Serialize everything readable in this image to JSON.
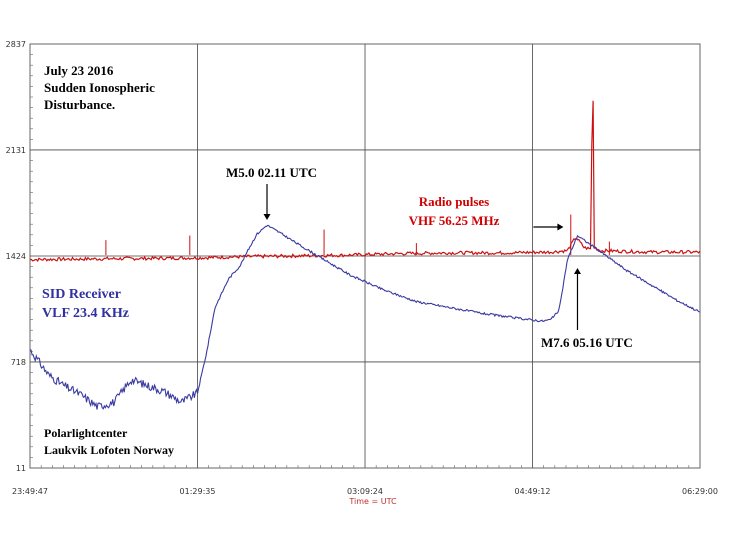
{
  "chart_data": {
    "type": "line",
    "title": "",
    "xlabel": "Time = UTC",
    "ylabel": "",
    "y_ticks": [
      "2837",
      "2131",
      "1424",
      "718",
      "11"
    ],
    "ylim": [
      11,
      2837
    ],
    "x_ticks": [
      "23:49:47",
      "01:29:35",
      "03:09:24",
      "04:49:12",
      "06:29:00"
    ],
    "xlim": [
      "23:49:47",
      "06:29:00"
    ],
    "grid": true,
    "colors": {
      "sid": "#3a3aa0",
      "radio": "#cc1111",
      "grid": "#444444",
      "axis": "#666666"
    },
    "series": [
      {
        "name": "SID Receiver",
        "x": [
          "23:49:47",
          "00:01",
          "00:10",
          "00:20",
          "00:30",
          "00:40",
          "00:50",
          "01:00",
          "01:10",
          "01:20",
          "01:29:35",
          "01:35",
          "01:40",
          "01:48",
          "01:55",
          "02:00",
          "02:05",
          "02:11",
          "02:20",
          "02:30",
          "02:45",
          "03:00",
          "03:20",
          "03:40",
          "04:00",
          "04:20",
          "04:40",
          "04:55",
          "05:00",
          "05:05",
          "05:10",
          "05:16",
          "05:25",
          "05:35",
          "05:45",
          "06:00",
          "06:15",
          "06:29:00"
        ],
        "values": [
          800,
          630,
          560,
          500,
          420,
          450,
          600,
          560,
          520,
          450,
          510,
          780,
          1080,
          1270,
          1360,
          1470,
          1570,
          1630,
          1570,
          1500,
          1400,
          1300,
          1200,
          1120,
          1080,
          1040,
          1010,
          990,
          1000,
          1060,
          1400,
          1560,
          1490,
          1410,
          1330,
          1230,
          1130,
          1050
        ]
      },
      {
        "name": "Radio pulses",
        "x": [
          "23:49:47",
          "00:30",
          "01:00",
          "01:29:35",
          "02:00",
          "02:30",
          "03:00",
          "03:30",
          "04:00",
          "04:30",
          "05:00",
          "05:10",
          "05:15",
          "05:20",
          "05:24",
          "05:25",
          "05:26",
          "05:30",
          "06:00",
          "06:29:00"
        ],
        "values": [
          1400,
          1405,
          1408,
          1412,
          1420,
          1425,
          1430,
          1440,
          1445,
          1445,
          1450,
          1460,
          1550,
          1480,
          1470,
          2837,
          1480,
          1460,
          1450,
          1450
        ]
      }
    ]
  },
  "annotations": {
    "date": "July 23 2016",
    "event_line1": "Sudden Ionospheric",
    "event_line2": "Disturbance.",
    "flare1": "M5.0   02.11 UTC",
    "radio_line1": "Radio pulses",
    "radio_line2": "VHF 56.25 MHz",
    "sid_line1": "SID Receiver",
    "sid_line2": "VLF 23.4 KHz",
    "flare2": "M7.6   05.16 UTC",
    "site_line1": "Polarlightcenter",
    "site_line2": "Laukvik Lofoten Norway"
  }
}
